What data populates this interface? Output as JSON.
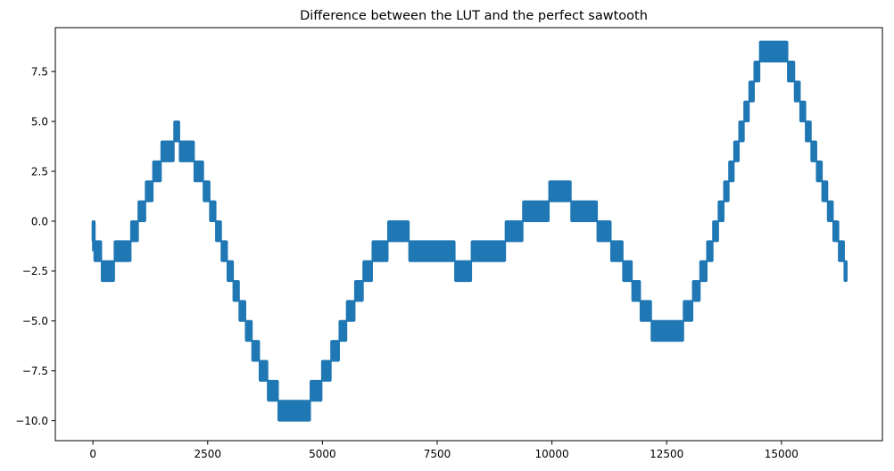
{
  "chart_data": {
    "type": "area",
    "title": "Difference between the LUT and the perfect sawtooth",
    "xlabel": "",
    "ylabel": "",
    "xlim": [
      -820,
      17200
    ],
    "ylim": [
      -11.0,
      9.7
    ],
    "xticks": [
      0,
      2500,
      5000,
      7500,
      10000,
      12500,
      15000
    ],
    "xtick_labels": [
      "0",
      "2500",
      "5000",
      "7500",
      "10000",
      "12500",
      "15000"
    ],
    "yticks": [
      -10.0,
      -7.5,
      -5.0,
      -2.5,
      0.0,
      2.5,
      5.0,
      7.5
    ],
    "ytick_labels": [
      "−10.0",
      "−7.5",
      "−5.0",
      "−2.5",
      "0.0",
      "2.5",
      "5.0",
      "7.5"
    ],
    "grid": false,
    "series": [
      {
        "color": "#1f77b4",
        "description_of_shape": "rapidly oscillating signal between consecutive integer levels (lower, lower+1)",
        "bands": [
          {
            "x0": 0,
            "x1": 40,
            "lower": -1,
            "upper": 0
          },
          {
            "x0": 40,
            "x1": 200,
            "lower": -2,
            "upper": -1
          },
          {
            "x0": 200,
            "x1": 480,
            "lower": -3,
            "upper": -2
          },
          {
            "x0": 480,
            "x1": 840,
            "lower": -2,
            "upper": -1
          },
          {
            "x0": 840,
            "x1": 1000,
            "lower": -1,
            "upper": 0
          },
          {
            "x0": 1000,
            "x1": 1160,
            "lower": 0,
            "upper": 1
          },
          {
            "x0": 1160,
            "x1": 1320,
            "lower": 1,
            "upper": 2
          },
          {
            "x0": 1320,
            "x1": 1500,
            "lower": 2,
            "upper": 3
          },
          {
            "x0": 1500,
            "x1": 1780,
            "lower": 3,
            "upper": 4
          },
          {
            "x0": 1780,
            "x1": 1900,
            "lower": 4,
            "upper": 5
          },
          {
            "x0": 1900,
            "x1": 2220,
            "lower": 3,
            "upper": 4
          },
          {
            "x0": 2220,
            "x1": 2420,
            "lower": 2,
            "upper": 3
          },
          {
            "x0": 2420,
            "x1": 2560,
            "lower": 1,
            "upper": 2
          },
          {
            "x0": 2560,
            "x1": 2690,
            "lower": 0,
            "upper": 1
          },
          {
            "x0": 2690,
            "x1": 2810,
            "lower": -1,
            "upper": 0
          },
          {
            "x0": 2810,
            "x1": 2940,
            "lower": -2,
            "upper": -1
          },
          {
            "x0": 2940,
            "x1": 3070,
            "lower": -3,
            "upper": -2
          },
          {
            "x0": 3070,
            "x1": 3200,
            "lower": -4,
            "upper": -3
          },
          {
            "x0": 3200,
            "x1": 3340,
            "lower": -5,
            "upper": -4
          },
          {
            "x0": 3340,
            "x1": 3480,
            "lower": -6,
            "upper": -5
          },
          {
            "x0": 3480,
            "x1": 3640,
            "lower": -7,
            "upper": -6
          },
          {
            "x0": 3640,
            "x1": 3820,
            "lower": -8,
            "upper": -7
          },
          {
            "x0": 3820,
            "x1": 4050,
            "lower": -9,
            "upper": -8
          },
          {
            "x0": 4050,
            "x1": 4750,
            "lower": -10,
            "upper": -9
          },
          {
            "x0": 4750,
            "x1": 5000,
            "lower": -9,
            "upper": -8
          },
          {
            "x0": 5000,
            "x1": 5200,
            "lower": -8,
            "upper": -7
          },
          {
            "x0": 5200,
            "x1": 5380,
            "lower": -7,
            "upper": -6
          },
          {
            "x0": 5380,
            "x1": 5540,
            "lower": -6,
            "upper": -5
          },
          {
            "x0": 5540,
            "x1": 5720,
            "lower": -5,
            "upper": -4
          },
          {
            "x0": 5720,
            "x1": 5900,
            "lower": -4,
            "upper": -3
          },
          {
            "x0": 5900,
            "x1": 6100,
            "lower": -3,
            "upper": -2
          },
          {
            "x0": 6100,
            "x1": 6440,
            "lower": -2,
            "upper": -1
          },
          {
            "x0": 6440,
            "x1": 6900,
            "lower": -1,
            "upper": 0
          },
          {
            "x0": 6900,
            "x1": 7900,
            "lower": -2,
            "upper": -1
          },
          {
            "x0": 7900,
            "x1": 8260,
            "lower": -3,
            "upper": -2
          },
          {
            "x0": 8260,
            "x1": 9000,
            "lower": -2,
            "upper": -1
          },
          {
            "x0": 9000,
            "x1": 9380,
            "lower": -1,
            "upper": 0
          },
          {
            "x0": 9380,
            "x1": 9950,
            "lower": 0,
            "upper": 1
          },
          {
            "x0": 9950,
            "x1": 10430,
            "lower": 1,
            "upper": 2
          },
          {
            "x0": 10430,
            "x1": 11000,
            "lower": 0,
            "upper": 1
          },
          {
            "x0": 11000,
            "x1": 11300,
            "lower": -1,
            "upper": 0
          },
          {
            "x0": 11300,
            "x1": 11560,
            "lower": -2,
            "upper": -1
          },
          {
            "x0": 11560,
            "x1": 11760,
            "lower": -3,
            "upper": -2
          },
          {
            "x0": 11760,
            "x1": 11940,
            "lower": -4,
            "upper": -3
          },
          {
            "x0": 11940,
            "x1": 12180,
            "lower": -5,
            "upper": -4
          },
          {
            "x0": 12180,
            "x1": 12880,
            "lower": -6,
            "upper": -5
          },
          {
            "x0": 12880,
            "x1": 13080,
            "lower": -5,
            "upper": -4
          },
          {
            "x0": 13080,
            "x1": 13240,
            "lower": -4,
            "upper": -3
          },
          {
            "x0": 13240,
            "x1": 13390,
            "lower": -3,
            "upper": -2
          },
          {
            "x0": 13390,
            "x1": 13520,
            "lower": -2,
            "upper": -1
          },
          {
            "x0": 13520,
            "x1": 13640,
            "lower": -1,
            "upper": 0
          },
          {
            "x0": 13640,
            "x1": 13760,
            "lower": 0,
            "upper": 1
          },
          {
            "x0": 13760,
            "x1": 13870,
            "lower": 1,
            "upper": 2
          },
          {
            "x0": 13870,
            "x1": 13980,
            "lower": 2,
            "upper": 3
          },
          {
            "x0": 13980,
            "x1": 14090,
            "lower": 3,
            "upper": 4
          },
          {
            "x0": 14090,
            "x1": 14200,
            "lower": 4,
            "upper": 5
          },
          {
            "x0": 14200,
            "x1": 14310,
            "lower": 5,
            "upper": 6
          },
          {
            "x0": 14310,
            "x1": 14420,
            "lower": 6,
            "upper": 7
          },
          {
            "x0": 14420,
            "x1": 14540,
            "lower": 7,
            "upper": 8
          },
          {
            "x0": 14540,
            "x1": 15150,
            "lower": 8,
            "upper": 9
          },
          {
            "x0": 15150,
            "x1": 15300,
            "lower": 7,
            "upper": 8
          },
          {
            "x0": 15300,
            "x1": 15420,
            "lower": 6,
            "upper": 7
          },
          {
            "x0": 15420,
            "x1": 15540,
            "lower": 5,
            "upper": 6
          },
          {
            "x0": 15540,
            "x1": 15660,
            "lower": 4,
            "upper": 5
          },
          {
            "x0": 15660,
            "x1": 15780,
            "lower": 3,
            "upper": 4
          },
          {
            "x0": 15780,
            "x1": 15900,
            "lower": 2,
            "upper": 3
          },
          {
            "x0": 15900,
            "x1": 16020,
            "lower": 1,
            "upper": 2
          },
          {
            "x0": 16020,
            "x1": 16140,
            "lower": 0,
            "upper": 1
          },
          {
            "x0": 16140,
            "x1": 16260,
            "lower": -1,
            "upper": 0
          },
          {
            "x0": 16260,
            "x1": 16383,
            "lower": -2,
            "upper": -1
          },
          {
            "x0": 16383,
            "x1": 16383,
            "lower": -3,
            "upper": -2
          }
        ]
      }
    ]
  },
  "colors": {
    "series": "#1f77b4",
    "axis": "#000000",
    "background": "#ffffff"
  }
}
